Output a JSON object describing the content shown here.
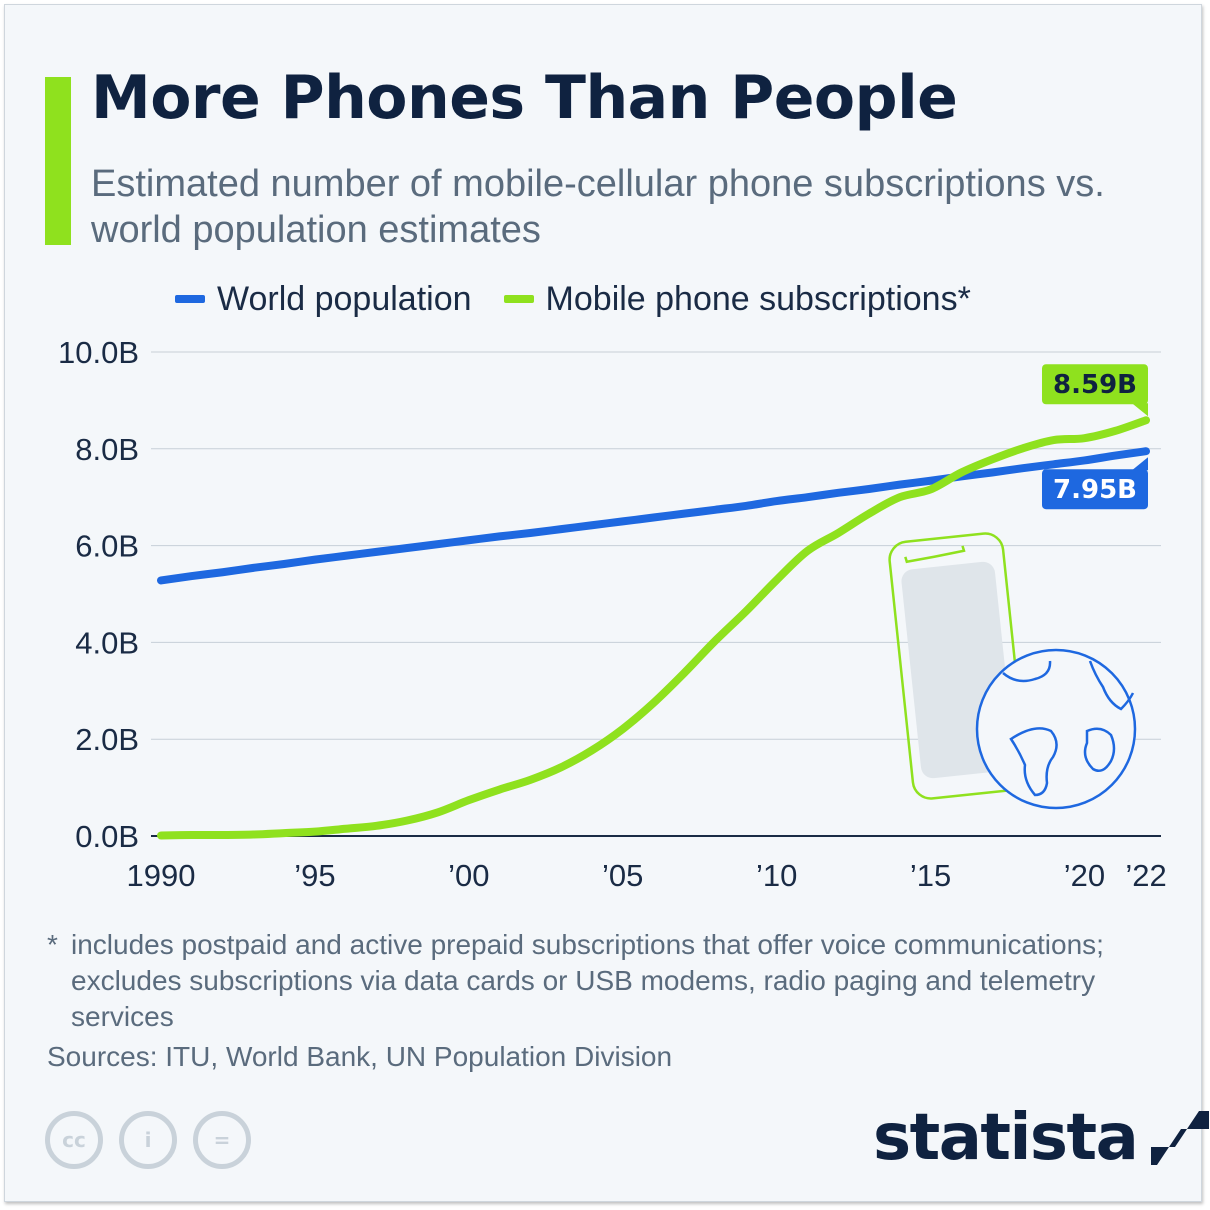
{
  "header": {
    "title": "More Phones Than People",
    "subtitle": "Estimated number of mobile-cellular phone subscriptions vs. world population estimates"
  },
  "colors": {
    "accent": "#8fe11e",
    "population": "#1e68e0",
    "mobile": "#8fe11e",
    "dark_navy": "#0f2240",
    "grid": "#c7cfd7",
    "illustration_screen": "#dfe5ea"
  },
  "legend": {
    "items": [
      {
        "label": "World population",
        "color": "#1e68e0"
      },
      {
        "label": "Mobile phone subscriptions*",
        "color": "#8fe11e"
      }
    ]
  },
  "chart_data": {
    "type": "line",
    "title": "More Phones Than People",
    "subtitle": "Estimated number of mobile-cellular phone subscriptions vs. world population estimates",
    "xlabel": "",
    "ylabel": "",
    "x": [
      1990,
      1991,
      1992,
      1993,
      1994,
      1995,
      1996,
      1997,
      1998,
      1999,
      2000,
      2001,
      2002,
      2003,
      2004,
      2005,
      2006,
      2007,
      2008,
      2009,
      2010,
      2011,
      2012,
      2013,
      2014,
      2015,
      2016,
      2017,
      2018,
      2019,
      2020,
      2021,
      2022
    ],
    "x_range": [
      1990,
      2022
    ],
    "x_tick_values": [
      1990,
      1995,
      2000,
      2005,
      2010,
      2015,
      2020,
      2022
    ],
    "x_tick_labels": [
      "1990",
      "’95",
      "’00",
      "’05",
      "’10",
      "’15",
      "’20",
      "’22"
    ],
    "ylim": [
      0,
      10
    ],
    "y_tick_values": [
      0,
      2,
      4,
      6,
      8,
      10
    ],
    "y_tick_labels": [
      "0.0B",
      "2.0B",
      "4.0B",
      "6.0B",
      "8.0B",
      "10.0B"
    ],
    "grid": true,
    "legend_position": "top",
    "series": [
      {
        "name": "World population",
        "color": "#1e68e0",
        "values": [
          5.28,
          5.37,
          5.45,
          5.54,
          5.62,
          5.71,
          5.79,
          5.87,
          5.95,
          6.03,
          6.11,
          6.19,
          6.26,
          6.34,
          6.42,
          6.5,
          6.58,
          6.66,
          6.74,
          6.82,
          6.92,
          7.0,
          7.09,
          7.17,
          7.26,
          7.34,
          7.43,
          7.51,
          7.6,
          7.68,
          7.76,
          7.86,
          7.95
        ],
        "end_label": "7.95B"
      },
      {
        "name": "Mobile phone subscriptions*",
        "color": "#8fe11e",
        "values": [
          0.01,
          0.02,
          0.02,
          0.03,
          0.06,
          0.09,
          0.15,
          0.21,
          0.32,
          0.49,
          0.74,
          0.96,
          1.16,
          1.42,
          1.77,
          2.21,
          2.75,
          3.37,
          4.03,
          4.64,
          5.29,
          5.89,
          6.26,
          6.66,
          7.0,
          7.16,
          7.51,
          7.78,
          8.01,
          8.18,
          8.22,
          8.37,
          8.59
        ],
        "end_label": "8.59B"
      }
    ]
  },
  "footnote": {
    "mark": "*",
    "text": "includes postpaid and active prepaid subscriptions that offer voice communications; excludes subscriptions via data cards or USB modems, radio paging and telemetry services"
  },
  "source": "Sources: ITU, World Bank, UN Population Division",
  "license_icons": [
    "creative-commons-icon",
    "attribution-icon",
    "no-derivatives-icon"
  ],
  "license_glyphs": [
    "cc",
    "i",
    "="
  ],
  "brand": {
    "name": "statista",
    "logo_icon": "statista-logo-icon"
  },
  "illustration": {
    "icons": [
      "smartphone-icon",
      "globe-icon"
    ]
  }
}
